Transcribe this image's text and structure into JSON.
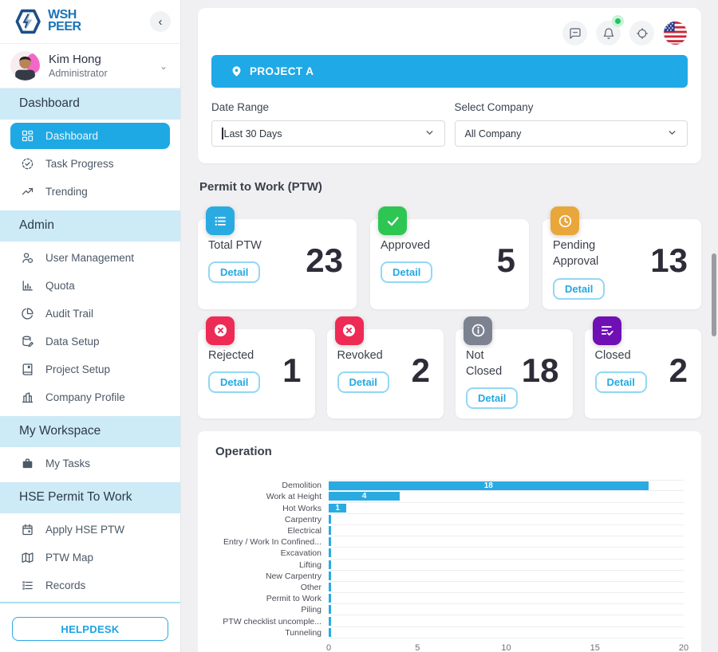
{
  "app": {
    "logo_line1": "WSH",
    "logo_line2": "PEER"
  },
  "theme": {
    "accent": "#29ABE2",
    "active_item_bg": "#1FA9E4",
    "section_header_bg": "#CDEAF7",
    "banner_bg": "#1FA9E6"
  },
  "sidebar": {
    "user": {
      "name": "Kim Hong",
      "role": "Administrator"
    },
    "sections": [
      {
        "label": "Dashboard",
        "items": [
          {
            "label": "Dashboard",
            "icon": "dashboard-grid-icon",
            "active": true
          },
          {
            "label": "Task Progress",
            "icon": "task-progress-icon"
          },
          {
            "label": "Trending",
            "icon": "trending-icon"
          }
        ]
      },
      {
        "label": "Admin",
        "items": [
          {
            "label": "User Management",
            "icon": "user-management-icon"
          },
          {
            "label": "Quota",
            "icon": "quota-icon"
          },
          {
            "label": "Audit Trail",
            "icon": "audit-trail-icon"
          },
          {
            "label": "Data Setup",
            "icon": "data-setup-icon"
          },
          {
            "label": "Project Setup",
            "icon": "project-setup-icon"
          },
          {
            "label": "Company Profile",
            "icon": "company-profile-icon"
          }
        ]
      },
      {
        "label": "My Workspace",
        "items": [
          {
            "label": "My Tasks",
            "icon": "my-tasks-icon"
          }
        ]
      },
      {
        "label": "HSE Permit To Work",
        "items": [
          {
            "label": "Apply HSE PTW",
            "icon": "apply-ptw-icon"
          },
          {
            "label": "PTW Map",
            "icon": "ptw-map-icon"
          },
          {
            "label": "Records",
            "icon": "records-icon"
          }
        ]
      }
    ],
    "helpdesk_label": "HELPDESK"
  },
  "topbar": {
    "icons": [
      "chat-icon",
      "notifications-icon",
      "display-settings-icon",
      "language-flag-us-icon"
    ],
    "notification_dot": true
  },
  "project_banner": {
    "label": "PROJECT A"
  },
  "filters": {
    "date_range": {
      "label": "Date Range",
      "value": "Last 30 Days"
    },
    "company": {
      "label": "Select Company",
      "value": "All Company"
    }
  },
  "ptw": {
    "section_title": "Permit to Work (PTW)",
    "detail_label": "Detail",
    "cards": [
      {
        "label": "Total PTW",
        "value": 23,
        "icon": "list-icon",
        "color": "#29ABE2",
        "row": 1
      },
      {
        "label": "Approved",
        "value": 5,
        "icon": "check-icon",
        "color": "#2DC653",
        "row": 1
      },
      {
        "label": "Pending Approval",
        "value": 13,
        "icon": "clock-icon",
        "color": "#E9A63A",
        "row": 1
      },
      {
        "label": "Rejected",
        "value": 1,
        "icon": "circle-x-icon",
        "color": "#EE2B55",
        "row": 2
      },
      {
        "label": "Revoked",
        "value": 2,
        "icon": "circle-x-icon",
        "color": "#EE2B55",
        "row": 2
      },
      {
        "label": "Not Closed",
        "value": 18,
        "icon": "circle-info-icon",
        "color": "#7C8290",
        "row": 2
      },
      {
        "label": "Closed",
        "value": 2,
        "icon": "list-check-icon",
        "color": "#6F10B5",
        "row": 2
      }
    ]
  },
  "chart_data": {
    "type": "bar",
    "orientation": "horizontal",
    "title": "Operation",
    "categories": [
      "Demolition",
      "Work at Height",
      "Hot Works",
      "Carpentry",
      "Electrical",
      "Entry / Work In Confined...",
      "Excavation",
      "Lifting",
      "New Carpentry",
      "Other",
      "Permit to Work",
      "Piling",
      "PTW checklist uncomple...",
      "Tunneling"
    ],
    "values": [
      18,
      4,
      1,
      0,
      0,
      0,
      0,
      0,
      0,
      0,
      0,
      0,
      0,
      0
    ],
    "xlabel": "",
    "ylabel": "",
    "xlim": [
      0,
      20
    ],
    "x_ticks": [
      0,
      5,
      10,
      15,
      20
    ],
    "bar_color": "#29ABE2",
    "grid": true,
    "value_labels": true,
    "legend": "none"
  }
}
